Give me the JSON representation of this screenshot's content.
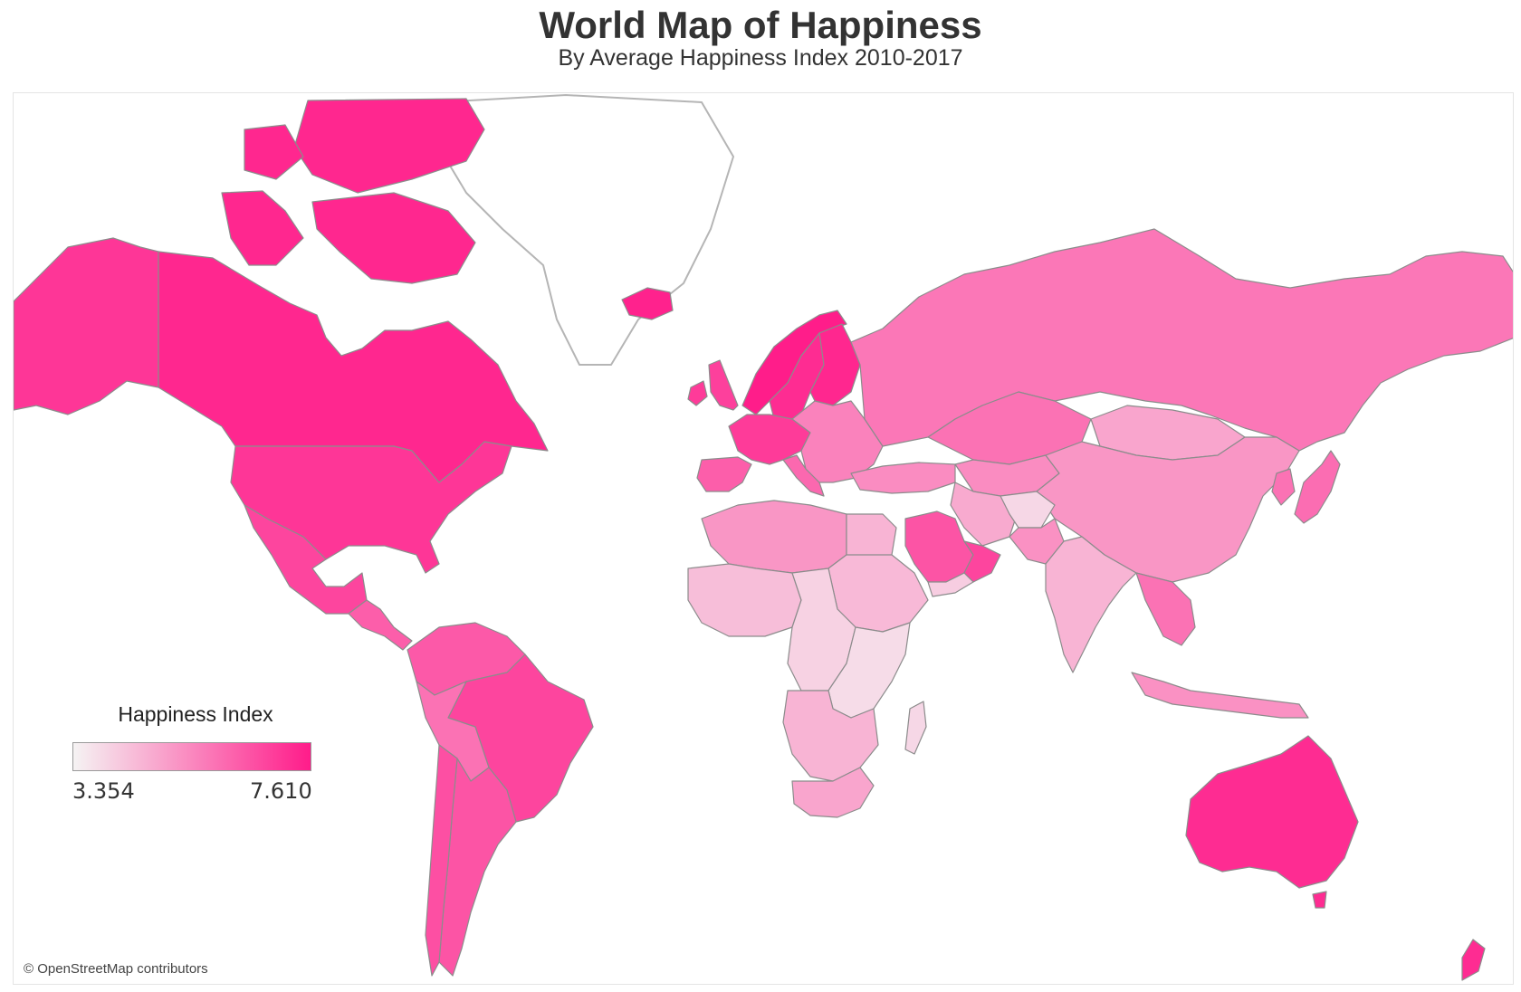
{
  "header": {
    "title": "World Map of Happiness",
    "subtitle": "By Average Happiness Index 2010-2017"
  },
  "legend": {
    "title": "Happiness Index",
    "min_label": "3.354",
    "max_label": "7.610",
    "min_value": 3.354,
    "max_value": 7.61,
    "color_low": "#f5f3f3",
    "color_high": "#ff1c8a"
  },
  "attribution": "© OpenStreetMap contributors",
  "colors": {
    "border": "#8c8c8c",
    "no_data_outline": "#b5b5b5",
    "background": "#ffffff"
  },
  "regions": [
    {
      "name": "Canada",
      "happiness": 7.4
    },
    {
      "name": "United States",
      "happiness": 7.1
    },
    {
      "name": "Alaska",
      "happiness": 7.1
    },
    {
      "name": "Mexico",
      "happiness": 6.8
    },
    {
      "name": "Central America",
      "happiness": 6.3
    },
    {
      "name": "Brazil",
      "happiness": 6.8
    },
    {
      "name": "Northern South America",
      "happiness": 6.4
    },
    {
      "name": "Peru and Bolivia",
      "happiness": 5.9
    },
    {
      "name": "Argentina",
      "happiness": 6.5
    },
    {
      "name": "Chile",
      "happiness": 6.6
    },
    {
      "name": "Greenland",
      "happiness": null
    },
    {
      "name": "Iceland",
      "happiness": 7.5
    },
    {
      "name": "Norway",
      "happiness": 7.6
    },
    {
      "name": "Sweden",
      "happiness": 7.3
    },
    {
      "name": "Finland",
      "happiness": 7.4
    },
    {
      "name": "United Kingdom",
      "happiness": 6.9
    },
    {
      "name": "Ireland",
      "happiness": 7.0
    },
    {
      "name": "Western Europe",
      "happiness": 7.0
    },
    {
      "name": "Spain and Portugal",
      "happiness": 6.3
    },
    {
      "name": "Italy",
      "happiness": 6.1
    },
    {
      "name": "Eastern Europe",
      "happiness": 5.6
    },
    {
      "name": "Russia",
      "happiness": 5.8
    },
    {
      "name": "Turkey and Caucasus",
      "happiness": 5.4
    },
    {
      "name": "Kazakhstan",
      "happiness": 5.9
    },
    {
      "name": "Central Asia",
      "happiness": 5.4
    },
    {
      "name": "Mongolia",
      "happiness": 4.9
    },
    {
      "name": "China",
      "happiness": 5.2
    },
    {
      "name": "Japan",
      "happiness": 6.0
    },
    {
      "name": "Korea",
      "happiness": 5.9
    },
    {
      "name": "Iran",
      "happiness": 4.8
    },
    {
      "name": "Afghanistan",
      "happiness": 3.9
    },
    {
      "name": "Pakistan",
      "happiness": 5.3
    },
    {
      "name": "India",
      "happiness": 4.6
    },
    {
      "name": "Saudi Arabia",
      "happiness": 6.5
    },
    {
      "name": "Gulf States",
      "happiness": 6.8
    },
    {
      "name": "Yemen",
      "happiness": 4.1
    },
    {
      "name": "Southeast Asia",
      "happiness": 5.9
    },
    {
      "name": "Indonesia",
      "happiness": 5.3
    },
    {
      "name": "Australia",
      "happiness": 7.3
    },
    {
      "name": "New Zealand",
      "happiness": 7.3
    },
    {
      "name": "North Africa",
      "happiness": 5.2
    },
    {
      "name": "Egypt",
      "happiness": 4.6
    },
    {
      "name": "West Africa",
      "happiness": 4.4
    },
    {
      "name": "Central Africa",
      "happiness": 4.0
    },
    {
      "name": "Sudan and Ethiopia",
      "happiness": 4.5
    },
    {
      "name": "East Africa",
      "happiness": 3.8
    },
    {
      "name": "Southern Africa",
      "happiness": 4.6
    },
    {
      "name": "South Africa",
      "happiness": 4.9
    },
    {
      "name": "Madagascar",
      "happiness": 3.9
    }
  ]
}
